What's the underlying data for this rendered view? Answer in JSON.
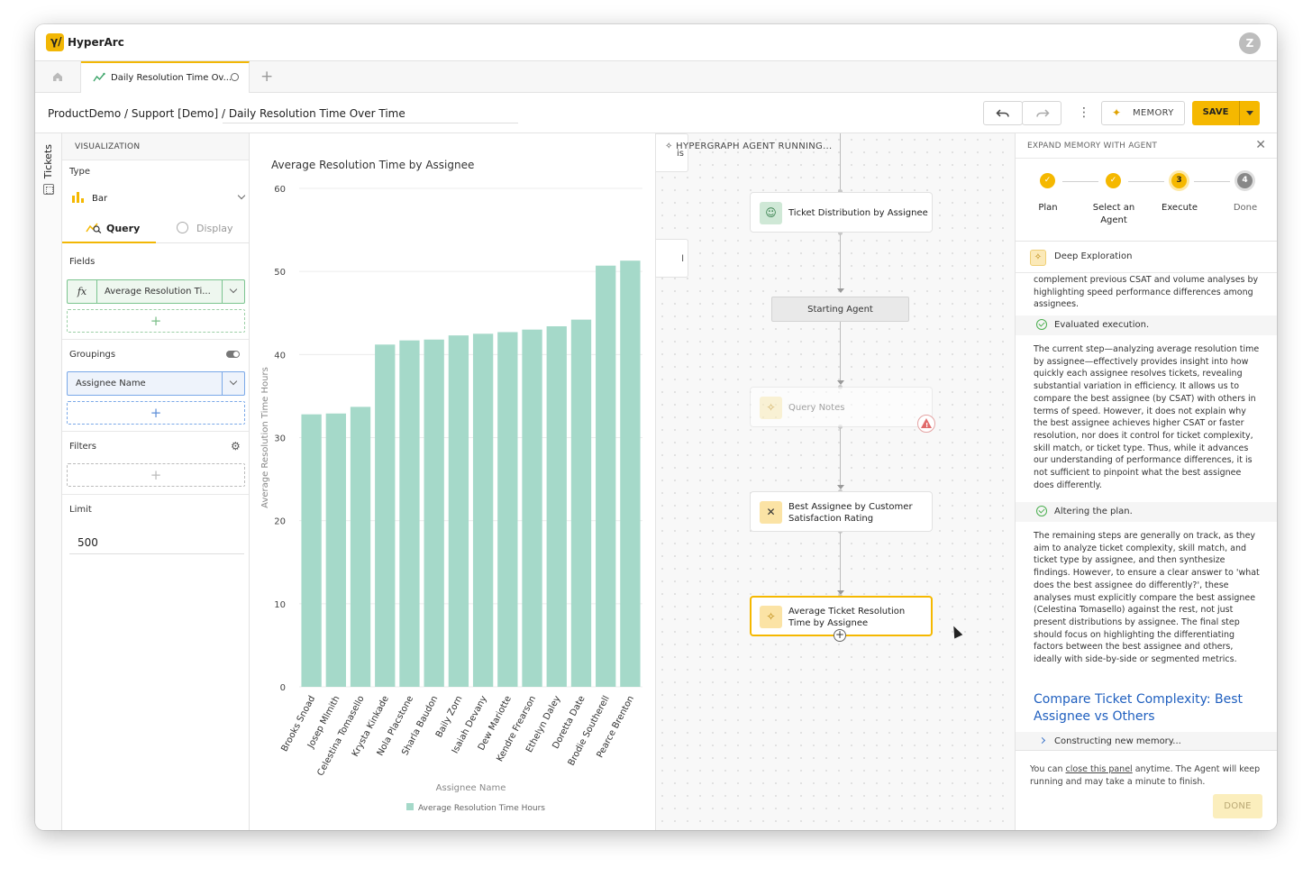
{
  "app": {
    "name": "HyperArc",
    "avatar_initial": "Z",
    "accent": "#f5b800"
  },
  "tabs": {
    "active_label": "Daily Resolution Time Ov..."
  },
  "breadcrumb": {
    "text": "ProductDemo  /  Support [Demo]  /  Daily Resolution Time Over Time"
  },
  "toolbar": {
    "memory_label": "MEMORY",
    "save_label": "SAVE"
  },
  "rail": {
    "label": "Tickets"
  },
  "config": {
    "header": "VISUALIZATION",
    "type_label": "Type",
    "type_value": "Bar",
    "query_tab": "Query",
    "display_tab": "Display",
    "fields_label": "Fields",
    "field_fx": "fx",
    "field_value": "Average Resolution Ti...",
    "groupings_label": "Groupings",
    "grouping_value": "Assignee Name",
    "filters_label": "Filters",
    "limit_label": "Limit",
    "limit_value": "500",
    "add_symbol": "+"
  },
  "chart_data": {
    "type": "bar",
    "title": "Average Resolution Time by Assignee",
    "xlabel": "Assignee Name",
    "ylabel": "Average Resolution Time Hours",
    "ylim": [
      0,
      60
    ],
    "yticks": [
      0,
      10,
      20,
      30,
      40,
      50,
      60
    ],
    "categories": [
      "Brooks Snoad",
      "Josep Mlmith",
      "Celestina Tomasello",
      "Krysta Kinkade",
      "Nola Placstone",
      "Sharla Baudon",
      "Baily Zorn",
      "Isaiah Devany",
      "Dew Mariotte",
      "Kendre Frearson",
      "Ethelyn Daley",
      "Doretta Date",
      "Brodie Southerell",
      "Pearce Brenton"
    ],
    "series": [
      {
        "name": "Average Resolution Time Hours",
        "values": [
          32.8,
          32.9,
          33.7,
          41.2,
          41.7,
          41.8,
          42.3,
          42.5,
          42.7,
          43.0,
          43.4,
          44.2,
          50.7,
          51.3
        ]
      }
    ],
    "bar_color": "#a5d9c9",
    "grid": true,
    "legend": "bottom"
  },
  "canvas": {
    "running_label": "HYPERGRAPH AGENT RUNNING...",
    "ghost1": "is",
    "ghost2": "l",
    "nodes": {
      "ticket_distribution": "Ticket Distribution by Assignee",
      "starting_agent": "Starting Agent",
      "query_notes": "Query Notes",
      "best_assignee": "Best Assignee by Customer Satisfaction Rating",
      "avg_ticket_resolution": "Average Ticket Resolution Time by Assignee"
    },
    "add_symbol": "+"
  },
  "agent_panel": {
    "header": "EXPAND MEMORY WITH AGENT",
    "steps": [
      {
        "label": "Plan",
        "marker": ""
      },
      {
        "label": "Select an Agent",
        "marker": ""
      },
      {
        "label": "Execute",
        "marker": "3"
      },
      {
        "label": "Done",
        "marker": "4"
      }
    ],
    "deep_exploration": "Deep Exploration",
    "para1": "complement previous CSAT and volume analyses by highlighting speed performance differences among assignees.",
    "status1": "Evaluated execution.",
    "para2": "The current step—analyzing average resolution time by assignee—effectively provides insight into how quickly each assignee resolves tickets, revealing substantial variation in efficiency. It allows us to compare the best assignee (by CSAT) with others in terms of speed. However, it does not explain why the best assignee achieves higher CSAT or faster resolution, nor does it control for ticket complexity, skill match, or ticket type. Thus, while it advances our understanding of performance differences, it is not sufficient to pinpoint what the best assignee does differently.",
    "status2": "Altering the plan.",
    "para3": "The remaining steps are generally on track, as they aim to analyze ticket complexity, skill match, and ticket type by assignee, and then synthesize findings. However, to ensure a clear answer to 'what does the best assignee do differently?', these analyses must explicitly compare the best assignee (Celestina Tomasello) against the rest, not just present distributions by assignee. The final step should focus on highlighting the differentiating factors between the best assignee and others, ideally with side-by-side or segmented metrics.",
    "memory_title": "Compare Ticket Complexity: Best Assignee vs Others",
    "constructing": "Constructing new memory...",
    "footer_pre": "You can ",
    "footer_link": "close this panel",
    "footer_post": " anytime. The Agent will keep running and may take a minute to finish.",
    "done_label": "DONE"
  }
}
